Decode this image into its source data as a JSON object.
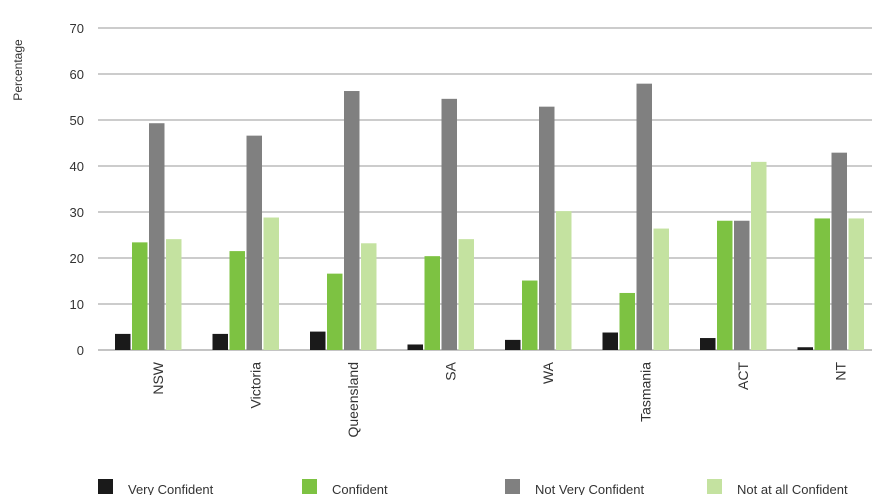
{
  "chart_data": {
    "type": "bar",
    "ylabel": "Percentage",
    "xlabel": "",
    "ylim": [
      0,
      70
    ],
    "yticks": [
      0,
      10,
      20,
      30,
      40,
      50,
      60,
      70
    ],
    "grid": true,
    "legend_position": "bottom",
    "categories": [
      "NSW",
      "Victoria",
      "Queensland",
      "SA",
      "WA",
      "Tasmania",
      "ACT",
      "NT"
    ],
    "series": [
      {
        "name": "Very Confident",
        "color": "#1a1a1a",
        "values": [
          3.5,
          3.5,
          4,
          1.2,
          2.2,
          3.8,
          2.6,
          0.6
        ]
      },
      {
        "name": "Confident",
        "color": "#7dc242",
        "values": [
          23.4,
          21.5,
          16.6,
          20.4,
          15.1,
          12.4,
          28.1,
          28.6
        ]
      },
      {
        "name": "Not Very Confident",
        "color": "#808080",
        "values": [
          49.3,
          46.6,
          56.3,
          54.6,
          52.9,
          57.9,
          28.1,
          42.9
        ]
      },
      {
        "name": "Not at all Confident",
        "color": "#c4e2a0",
        "values": [
          24.1,
          28.8,
          23.2,
          24.1,
          30.2,
          26.4,
          40.9,
          28.6
        ]
      }
    ]
  }
}
